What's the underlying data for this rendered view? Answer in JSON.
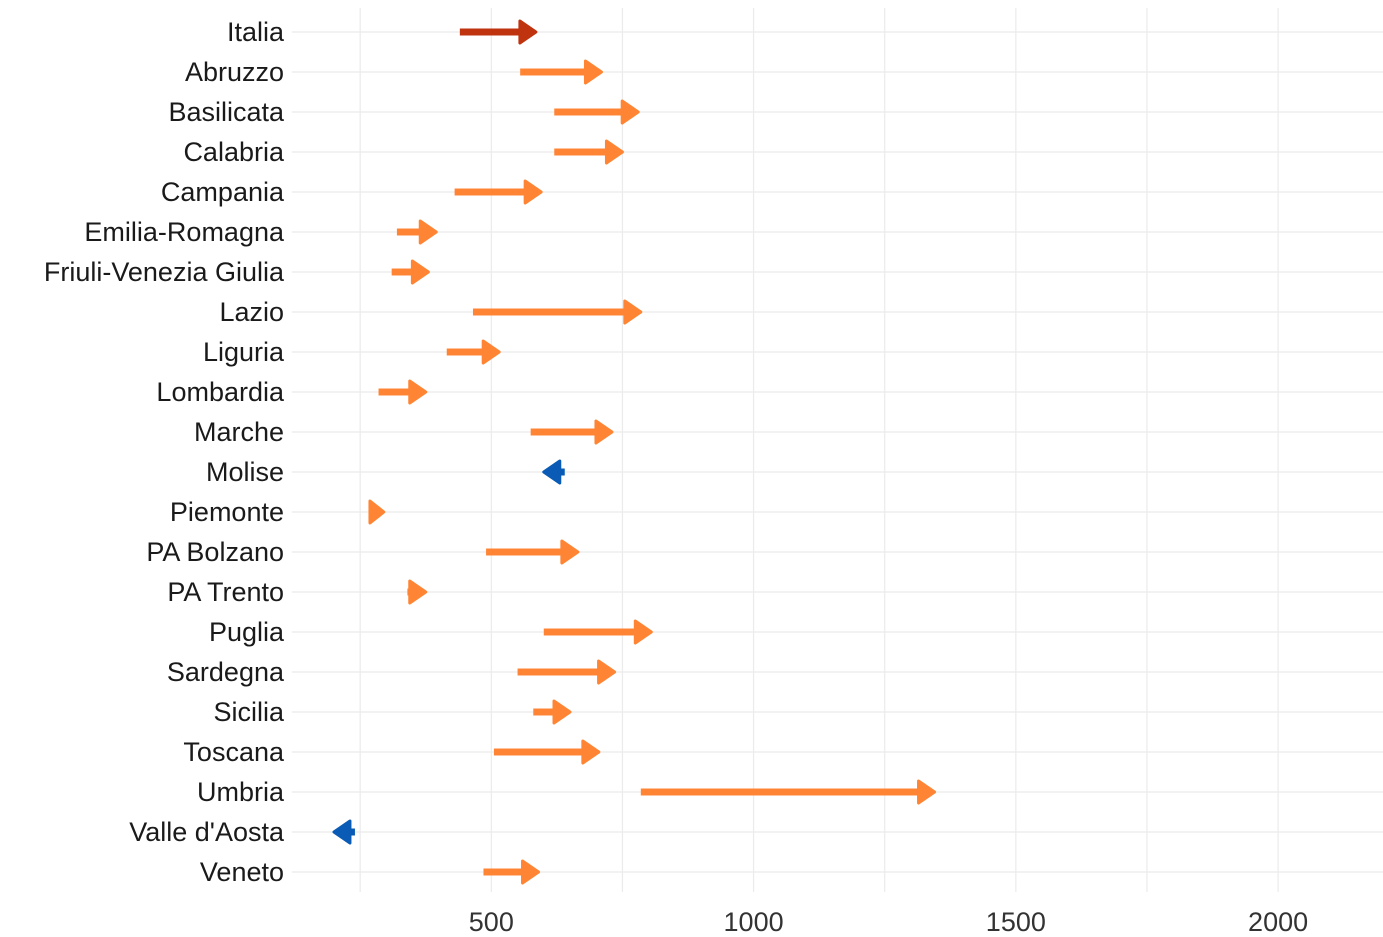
{
  "chart_data": {
    "type": "arrow",
    "title": "",
    "xlabel": "",
    "ylabel": "",
    "xlim": [
      120,
      2200
    ],
    "xticks": [
      500,
      1000,
      1500,
      2000
    ],
    "grid": true,
    "legend": "none",
    "colors": {
      "total": "#C0330F",
      "increase": "#FF8534",
      "decrease": "#0A5BB5"
    },
    "categories": [
      "Italia",
      "Abruzzo",
      "Basilicata",
      "Calabria",
      "Campania",
      "Emilia-Romagna",
      "Friuli-Venezia Giulia",
      "Lazio",
      "Liguria",
      "Lombardia",
      "Marche",
      "Molise",
      "Piemonte",
      "PA Bolzano",
      "PA Trento",
      "Puglia",
      "Sardegna",
      "Sicilia",
      "Toscana",
      "Umbria",
      "Valle d'Aosta",
      "Veneto"
    ],
    "series": [
      {
        "start": [
          440,
          555,
          620,
          620,
          430,
          320,
          310,
          465,
          415,
          285,
          575,
          640,
          270,
          490,
          340,
          600,
          550,
          580,
          505,
          785,
          240,
          485
        ],
        "end": [
          585,
          710,
          780,
          750,
          595,
          395,
          380,
          785,
          515,
          375,
          730,
          600,
          295,
          665,
          375,
          805,
          735,
          650,
          705,
          1345,
          200,
          590
        ]
      }
    ]
  }
}
